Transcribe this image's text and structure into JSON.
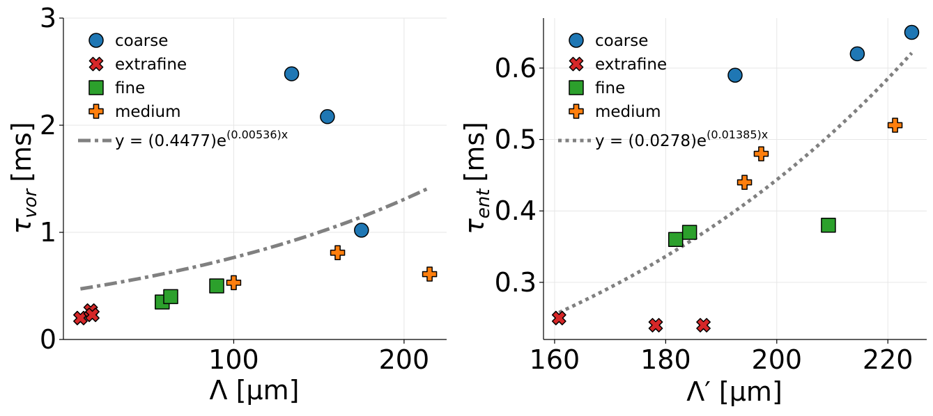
{
  "chart_data": [
    {
      "type": "scatter",
      "xlabel": "Λ [μm]",
      "ylabel_main": "τ",
      "ylabel_sub": "vor",
      "ylabel_unit": "[ms]",
      "xlim": [
        0,
        225
      ],
      "ylim": [
        0,
        3
      ],
      "xticks": [
        100,
        200
      ],
      "yticks": [
        0,
        1,
        2,
        3
      ],
      "grid": true,
      "legend_position": "top-left",
      "series": [
        {
          "name": "coarse",
          "marker": "circle",
          "color": "#1f77b4",
          "x": [
            134,
            155,
            175
          ],
          "y": [
            2.48,
            2.08,
            1.02
          ]
        },
        {
          "name": "extrafine",
          "marker": "x",
          "color": "#d62728",
          "x": [
            10,
            16,
            17
          ],
          "y": [
            0.2,
            0.27,
            0.23
          ]
        },
        {
          "name": "fine",
          "marker": "square",
          "color": "#2ca02c",
          "x": [
            58,
            63,
            90
          ],
          "y": [
            0.35,
            0.4,
            0.5
          ]
        },
        {
          "name": "medium",
          "marker": "plus",
          "color": "#ff7f0e",
          "x": [
            100,
            161,
            215
          ],
          "y": [
            0.53,
            0.81,
            0.61
          ]
        }
      ],
      "fit": {
        "label_prefix": "y = (0.4477)e",
        "label_exp": "(0.00536)x",
        "a": 0.4477,
        "b": 0.00536,
        "xrange": [
          10,
          215
        ],
        "style": "dashdot",
        "color": "#808080"
      }
    },
    {
      "type": "scatter",
      "xlabel": "Λ′ [μm]",
      "ylabel_main": "τ",
      "ylabel_sub": "ent",
      "ylabel_unit": "[ms]",
      "xlim": [
        158,
        227
      ],
      "ylim": [
        0.22,
        0.67
      ],
      "xticks": [
        160,
        180,
        200,
        220
      ],
      "yticks": [
        0.3,
        0.4,
        0.5,
        0.6
      ],
      "grid": true,
      "legend_position": "top-left",
      "series": [
        {
          "name": "coarse",
          "marker": "circle",
          "color": "#1f77b4",
          "x": [
            192.5,
            214.5,
            224.3
          ],
          "y": [
            0.59,
            0.62,
            0.65
          ]
        },
        {
          "name": "extrafine",
          "marker": "x",
          "color": "#d62728",
          "x": [
            160.8,
            178.2,
            186.8
          ],
          "y": [
            0.25,
            0.24,
            0.24
          ]
        },
        {
          "name": "fine",
          "marker": "square",
          "color": "#2ca02c",
          "x": [
            181.8,
            184.3,
            209.3
          ],
          "y": [
            0.36,
            0.37,
            0.38
          ]
        },
        {
          "name": "medium",
          "marker": "plus",
          "color": "#ff7f0e",
          "x": [
            194.2,
            197.2,
            221.3
          ],
          "y": [
            0.44,
            0.48,
            0.52
          ]
        }
      ],
      "fit": {
        "label_prefix": "y = (0.0278)e",
        "label_exp": "(0.01385)x",
        "a": 0.0278,
        "b": 0.01385,
        "xrange": [
          160.8,
          224.3
        ],
        "style": "dotted",
        "color": "#808080"
      }
    }
  ]
}
